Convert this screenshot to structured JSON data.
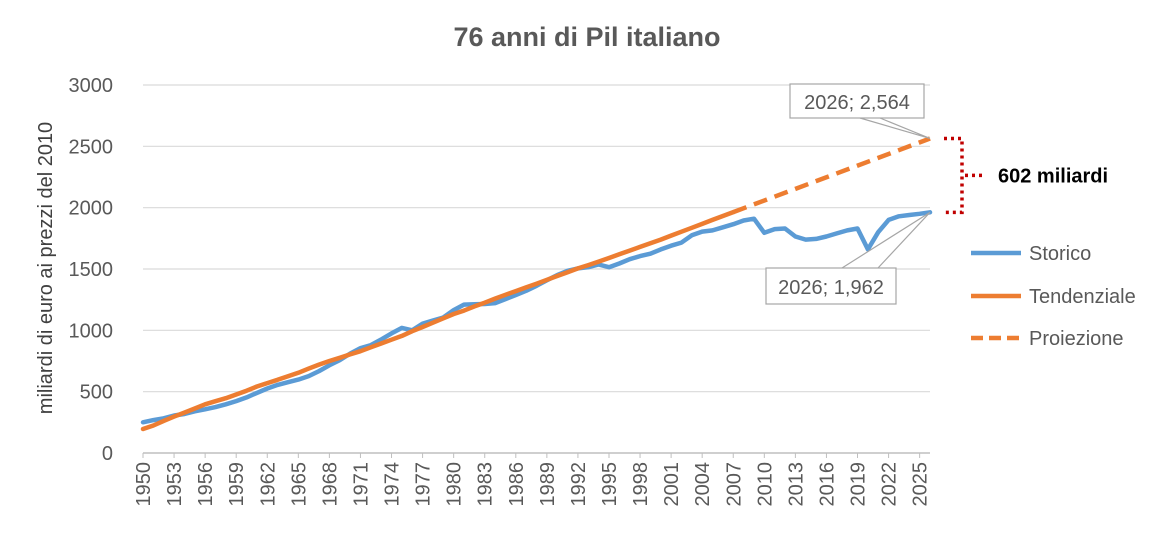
{
  "chart_data": {
    "type": "line",
    "title": "76 anni di Pil italiano",
    "xlabel": "",
    "ylabel": "miliardi di euro ai prezzi del 2010",
    "ylim": [
      0,
      3000
    ],
    "yticks": [
      0,
      500,
      1000,
      1500,
      2000,
      2500,
      3000
    ],
    "xlim": [
      1950,
      2026
    ],
    "xticks": [
      1950,
      1953,
      1956,
      1959,
      1962,
      1965,
      1968,
      1971,
      1974,
      1977,
      1980,
      1983,
      1986,
      1989,
      1992,
      1995,
      1998,
      2001,
      2004,
      2007,
      2010,
      2013,
      2016,
      2019,
      2022,
      2025
    ],
    "grid": true,
    "legend_position": "right",
    "series": [
      {
        "name": "Storico",
        "color": "#5B9BD5",
        "style": "solid",
        "x": [
          1950,
          1951,
          1952,
          1953,
          1954,
          1955,
          1956,
          1957,
          1958,
          1959,
          1960,
          1961,
          1962,
          1963,
          1964,
          1965,
          1966,
          1967,
          1968,
          1969,
          1970,
          1971,
          1972,
          1973,
          1974,
          1975,
          1976,
          1977,
          1978,
          1979,
          1980,
          1981,
          1982,
          1983,
          1984,
          1985,
          1986,
          1987,
          1988,
          1989,
          1990,
          1991,
          1992,
          1993,
          1994,
          1995,
          1996,
          1997,
          1998,
          1999,
          2000,
          2001,
          2002,
          2003,
          2004,
          2005,
          2006,
          2007,
          2008,
          2009,
          2010,
          2011,
          2012,
          2013,
          2014,
          2015,
          2016,
          2017,
          2018,
          2019,
          2020,
          2021,
          2022,
          2023,
          2024,
          2025,
          2026
        ],
        "values": [
          250,
          268,
          283,
          306,
          318,
          340,
          356,
          374,
          397,
          423,
          453,
          490,
          526,
          555,
          577,
          598,
          627,
          668,
          715,
          757,
          810,
          855,
          880,
          925,
          975,
          1020,
          1000,
          1055,
          1080,
          1105,
          1165,
          1210,
          1212,
          1215,
          1222,
          1255,
          1288,
          1322,
          1363,
          1408,
          1450,
          1485,
          1505,
          1515,
          1537,
          1515,
          1545,
          1580,
          1605,
          1625,
          1660,
          1690,
          1715,
          1775,
          1805,
          1815,
          1840,
          1865,
          1895,
          1910,
          1795,
          1825,
          1830,
          1765,
          1740,
          1745,
          1765,
          1790,
          1815,
          1830,
          1660,
          1800,
          1900,
          1930,
          1940,
          1950,
          1962
        ]
      },
      {
        "name": "Tendenziale",
        "color": "#ED7D31",
        "style": "solid",
        "x": [
          1950,
          1951,
          1952,
          1953,
          1954,
          1955,
          1956,
          1957,
          1958,
          1959,
          1960,
          1961,
          1962,
          1963,
          1964,
          1965,
          1966,
          1967,
          1968,
          1969,
          1970,
          1971,
          1972,
          1973,
          1974,
          1975,
          1976,
          1977,
          1978,
          1979,
          1980,
          1981,
          1982,
          1983,
          1984,
          1985,
          1986,
          1987,
          1988,
          1989,
          1990,
          1991,
          1992,
          1993,
          1994,
          1995,
          1996,
          1997,
          1998,
          1999,
          2000,
          2001,
          2002,
          2003,
          2004,
          2005,
          2006,
          2007
        ],
        "values": [
          196,
          224,
          262,
          297,
          329,
          363,
          397,
          422,
          447,
          477,
          508,
          542,
          570,
          597,
          626,
          654,
          688,
          721,
          750,
          776,
          804,
          830,
          862,
          893,
          924,
          955,
          993,
          1027,
          1062,
          1098,
          1133,
          1161,
          1195,
          1225,
          1259,
          1290,
          1320,
          1350,
          1380,
          1412,
          1443,
          1473,
          1505,
          1532,
          1560,
          1590,
          1620,
          1650,
          1680,
          1710,
          1740,
          1772,
          1804,
          1836,
          1868,
          1900,
          1932,
          1964
        ]
      },
      {
        "name": "Proiezione",
        "color": "#ED7D31",
        "style": "dashed",
        "x": [
          2007,
          2026
        ],
        "values": [
          1964,
          2564
        ]
      }
    ],
    "annotations": [
      {
        "label": "2026; 2,564",
        "x": 2026,
        "y": 2564
      },
      {
        "label": "2026; 1,962",
        "x": 2026,
        "y": 1962
      },
      {
        "label": "602 miliardi",
        "from": 1962,
        "to": 2564,
        "color": "#C00000"
      }
    ]
  }
}
